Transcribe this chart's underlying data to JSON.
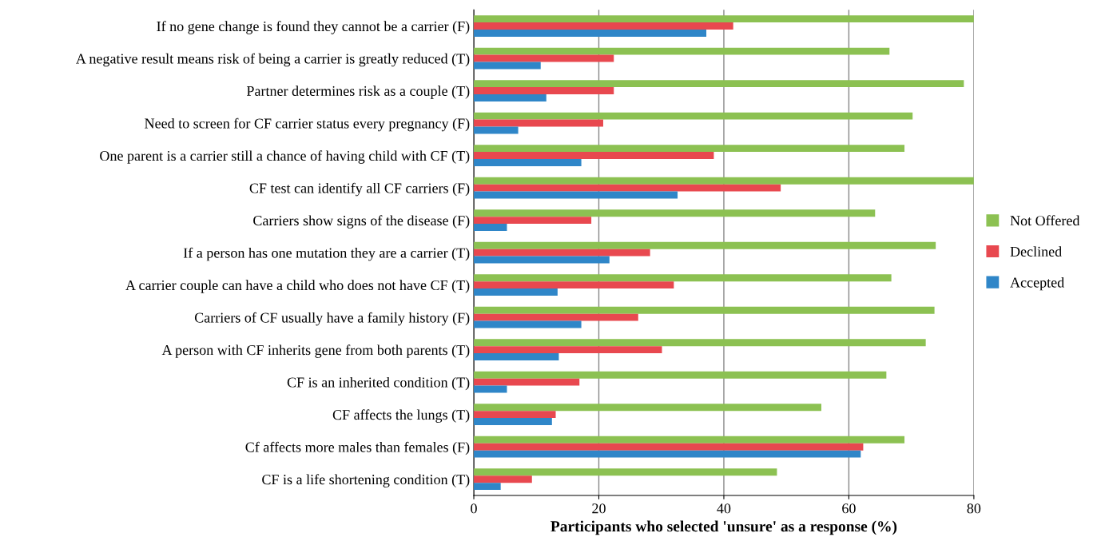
{
  "chart_data": {
    "type": "bar",
    "orientation": "horizontal",
    "xlabel": "Participants who selected 'unsure' as a response (%)",
    "categories": [
      "If no gene change is found they cannot be a carrier (F)",
      "A negative result means risk of being a carrier is greatly reduced (T)",
      "Partner determines risk as a couple (T)",
      "Need to screen for CF carrier status every pregnancy (F)",
      "One parent is a carrier still a chance of having child with CF (T)",
      "CF test can identify all CF carriers (F)",
      "Carriers show signs of the disease (F)",
      "If a person has one mutation they are a carrier (T)",
      "A carrier couple can have a child who does not have CF (T)",
      "Carriers of CF usually have a family history (F)",
      "A person with CF inherits gene from both parents (T)",
      "CF is an inherited condition (T)",
      "CF affects the lungs (T)",
      "Cf affects more males than females (F)",
      "CF is a life shortening condition (T)"
    ],
    "series": [
      {
        "name": "Not Offered",
        "color": "#8cc152",
        "values": [
          80,
          66.5,
          78.4,
          70.2,
          68.9,
          80,
          64.2,
          73.9,
          66.8,
          73.7,
          72.3,
          66.0,
          55.6,
          68.9,
          48.5
        ]
      },
      {
        "name": "Declined",
        "color": "#e8484f",
        "values": [
          41.5,
          22.4,
          22.4,
          20.7,
          38.4,
          49.1,
          18.8,
          28.2,
          32.0,
          26.3,
          30.1,
          16.9,
          13.1,
          62.3,
          9.3
        ]
      },
      {
        "name": "Accepted",
        "color": "#2f86c8",
        "values": [
          37.2,
          10.7,
          11.6,
          7.1,
          17.2,
          32.6,
          5.3,
          21.7,
          13.4,
          17.2,
          13.6,
          5.3,
          12.5,
          61.9,
          4.3
        ]
      }
    ],
    "xlim": [
      0,
      80
    ],
    "xticks": [
      0,
      20,
      40,
      60,
      80
    ],
    "grid": "x",
    "legend": "right"
  }
}
